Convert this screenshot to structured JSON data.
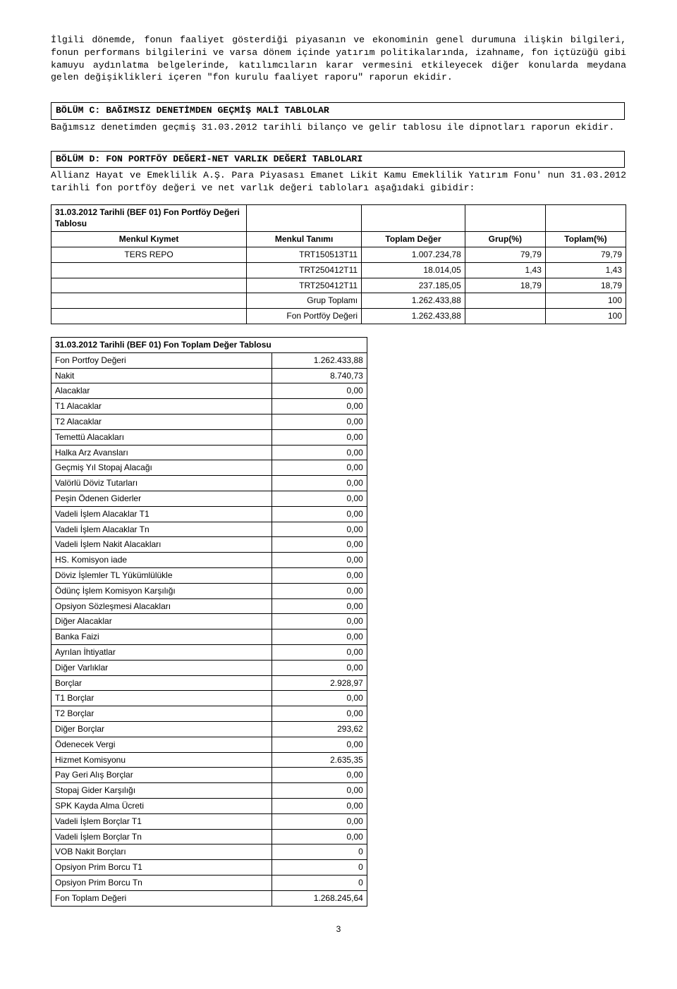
{
  "intro_paragraph": "İlgili dönemde, fonun faaliyet gösterdiği piyasanın ve ekonominin genel durumuna ilişkin bilgileri, fonun performans bilgilerini ve varsa dönem içinde yatırım politikalarında, izahname, fon içtüzüğü gibi kamuyu aydınlatma belgelerinde, katılımcıların karar vermesini etkileyecek diğer konularda meydana gelen değişiklikleri içeren \"fon kurulu faaliyet raporu\" raporun ekidir.",
  "section_c": {
    "title": "BÖLÜM C: BAĞIMSIZ DENETİMDEN GEÇMİŞ MALİ TABLOLAR",
    "body": "Bağımsız denetimden geçmiş 31.03.2012 tarihli bilanço ve gelir tablosu ile dipnotları raporun ekidir."
  },
  "section_d": {
    "title": "BÖLÜM D: FON PORTFÖY DEĞERİ-NET VARLIK DEĞERİ TABLOLARI",
    "body": "Allianz Hayat ve Emeklilik A.Ş. Para Piyasası Emanet Likit Kamu Emeklilik Yatırım Fonu' nun 31.03.2012 tarihli fon portföy değeri ve net varlık değeri tabloları aşağıdaki gibidir:"
  },
  "table1": {
    "title": "31.03.2012 Tarihli (BEF 01) Fon Portföy Değeri Tablosu",
    "headers": [
      "Menkul Kıymet",
      "Menkul Tanımı",
      "Toplam Değer",
      "Grup(%)",
      "Toplam(%)"
    ],
    "rows": [
      [
        "TERS REPO",
        "TRT150513T11",
        "1.007.234,78",
        "79,79",
        "79,79"
      ],
      [
        "",
        "TRT250412T11",
        "18.014,05",
        "1,43",
        "1,43"
      ],
      [
        "",
        "TRT250412T11",
        "237.185,05",
        "18,79",
        "18,79"
      ],
      [
        "",
        "Grup Toplamı",
        "1.262.433,88",
        "",
        "100"
      ],
      [
        "",
        "Fon Portföy Değeri",
        "1.262.433,88",
        "",
        "100"
      ]
    ]
  },
  "table2": {
    "title": "31.03.2012 Tarihli (BEF 01) Fon Toplam Değer Tablosu",
    "rows": [
      [
        "Fon Portfoy Değeri",
        "1.262.433,88"
      ],
      [
        "Nakit",
        "8.740,73"
      ],
      [
        "Alacaklar",
        "0,00"
      ],
      [
        "T1 Alacaklar",
        "0,00"
      ],
      [
        "T2 Alacaklar",
        "0,00"
      ],
      [
        "Temettü Alacakları",
        "0,00"
      ],
      [
        "Halka Arz Avansları",
        "0,00"
      ],
      [
        "Geçmiş Yıl Stopaj Alacağı",
        "0,00"
      ],
      [
        "Valörlü Döviz Tutarları",
        "0,00"
      ],
      [
        "Peşin Ödenen Giderler",
        "0,00"
      ],
      [
        "Vadeli İşlem Alacaklar T1",
        "0,00"
      ],
      [
        "Vadeli İşlem Alacaklar Tn",
        "0,00"
      ],
      [
        "Vadeli İşlem Nakit Alacakları",
        "0,00"
      ],
      [
        "HS. Komisyon iade",
        "0,00"
      ],
      [
        "Döviz İşlemler TL Yükümlülükle",
        "0,00"
      ],
      [
        "Ödünç İşlem Komisyon Karşılığı",
        "0,00"
      ],
      [
        "Opsiyon Sözleşmesi Alacakları",
        "0,00"
      ],
      [
        "Diğer Alacaklar",
        "0,00"
      ],
      [
        "Banka Faizi",
        "0,00"
      ],
      [
        "Ayrılan İhtiyatlar",
        "0,00"
      ],
      [
        "Diğer Varlıklar",
        "0,00"
      ],
      [
        "Borçlar",
        "2.928,97"
      ],
      [
        "T1 Borçlar",
        "0,00"
      ],
      [
        "T2 Borçlar",
        "0,00"
      ],
      [
        "Diğer Borçlar",
        "293,62"
      ],
      [
        "Ödenecek Vergi",
        "0,00"
      ],
      [
        "Hizmet Komisyonu",
        "2.635,35"
      ],
      [
        "Pay Geri Alış Borçlar",
        "0,00"
      ],
      [
        "Stopaj Gider Karşılığı",
        "0,00"
      ],
      [
        "SPK Kayda Alma Ücreti",
        "0,00"
      ],
      [
        "Vadeli İşlem Borçlar T1",
        "0,00"
      ],
      [
        "Vadeli İşlem Borçlar Tn",
        "0,00"
      ],
      [
        "VOB Nakit Borçları",
        "0"
      ],
      [
        "Opsiyon Prim Borcu T1",
        "0"
      ],
      [
        "Opsiyon Prim Borcu Tn",
        "0"
      ],
      [
        "Fon Toplam Değeri",
        "1.268.245,64"
      ]
    ]
  },
  "page_number": "3"
}
